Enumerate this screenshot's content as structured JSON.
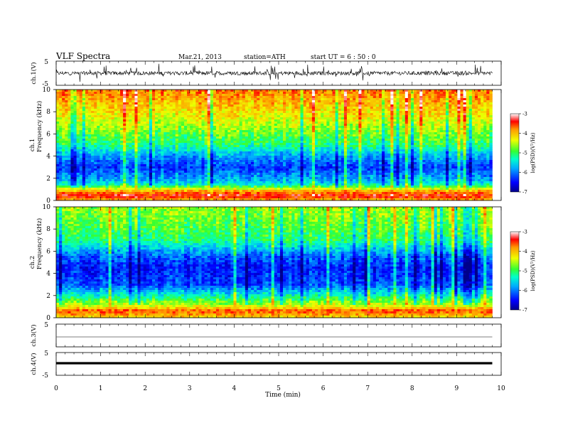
{
  "header": {
    "title": "VLF  Spectra",
    "date": "Mar.21, 2013",
    "station": "station=ATH",
    "start": "start  UT  =   6  : 50 : 0"
  },
  "chart_data": [
    {
      "type": "line",
      "panel": "ch1-waveform",
      "ylabel": "ch.1(V)",
      "yticks": [
        "5",
        "-5"
      ],
      "ylim": [
        -5,
        5
      ],
      "xlim": [
        0,
        10
      ],
      "signal_extent_min": 9.8
    },
    {
      "type": "heatmap",
      "panel": "ch1-spectrogram",
      "ylabel": [
        "ch.1",
        "Frequency  (kHz)"
      ],
      "ylim": [
        0,
        10
      ],
      "yticks": [
        "0",
        "2",
        "4",
        "6",
        "8",
        "10"
      ],
      "ytick_values": [
        0,
        2,
        4,
        6,
        8,
        10
      ],
      "xlim": [
        0,
        10
      ],
      "data_extent_min": 9.8,
      "colorbar": {
        "label": "log(PSD)(V²/Hz)",
        "range": [
          -7,
          -3
        ],
        "ticks": [
          "-3",
          "-4",
          "-5",
          "-6",
          "-7"
        ],
        "colormap": "jet"
      },
      "frequency_profile_khz": [
        {
          "f": 0.0,
          "logpsd": -4.0
        },
        {
          "f": 0.4,
          "logpsd": -3.3
        },
        {
          "f": 0.8,
          "logpsd": -3.8
        },
        {
          "f": 1.5,
          "logpsd": -5.5
        },
        {
          "f": 2.0,
          "logpsd": -5.8
        },
        {
          "f": 3.0,
          "logpsd": -6.3
        },
        {
          "f": 4.0,
          "logpsd": -5.8
        },
        {
          "f": 5.0,
          "logpsd": -5.1
        },
        {
          "f": 6.0,
          "logpsd": -4.8
        },
        {
          "f": 7.5,
          "logpsd": -4.3
        },
        {
          "f": 10.0,
          "logpsd": -3.7
        }
      ]
    },
    {
      "type": "heatmap",
      "panel": "ch2-spectrogram",
      "ylabel": [
        "ch.2",
        "Frequency  (kHz)"
      ],
      "ylim": [
        0,
        10
      ],
      "yticks": [
        "0",
        "2",
        "4",
        "6",
        "8",
        "10"
      ],
      "ytick_values": [
        0,
        2,
        4,
        6,
        8,
        10
      ],
      "xlim": [
        0,
        10
      ],
      "data_extent_min": 9.8,
      "colorbar": {
        "label": "log(PSD)(V²/Hz)",
        "range": [
          -7,
          -3
        ],
        "ticks": [
          "-3",
          "-4",
          "-5",
          "-6",
          "-7"
        ],
        "colormap": "jet"
      },
      "frequency_profile_khz": [
        {
          "f": 0.0,
          "logpsd": -4.2
        },
        {
          "f": 0.6,
          "logpsd": -3.5
        },
        {
          "f": 1.0,
          "logpsd": -4.3
        },
        {
          "f": 2.0,
          "logpsd": -5.3
        },
        {
          "f": 3.0,
          "logpsd": -6.2
        },
        {
          "f": 4.5,
          "logpsd": -6.4
        },
        {
          "f": 5.5,
          "logpsd": -6.1
        },
        {
          "f": 7.0,
          "logpsd": -5.1
        },
        {
          "f": 8.5,
          "logpsd": -4.8
        },
        {
          "f": 10.0,
          "logpsd": -4.6
        }
      ]
    },
    {
      "type": "line",
      "panel": "ch3-waveform",
      "ylabel": "ch.3(V)",
      "yticks": [
        "5",
        ""
      ],
      "ylim": [
        -5,
        5
      ],
      "xlim": [
        0,
        10
      ],
      "level_v": 0.0
    },
    {
      "type": "line",
      "panel": "ch4-waveform",
      "ylabel": "ch.4(V)",
      "yticks": [
        "5",
        "-5"
      ],
      "ylim": [
        -5,
        5
      ],
      "xlim": [
        0,
        10
      ],
      "level_v": 0.0,
      "xlabel": "Time  (min)",
      "xticks": [
        "0",
        "1",
        "2",
        "3",
        "4",
        "5",
        "6",
        "7",
        "8",
        "9",
        "10"
      ],
      "xtick_values": [
        0,
        1,
        2,
        3,
        4,
        5,
        6,
        7,
        8,
        9,
        10
      ]
    }
  ]
}
